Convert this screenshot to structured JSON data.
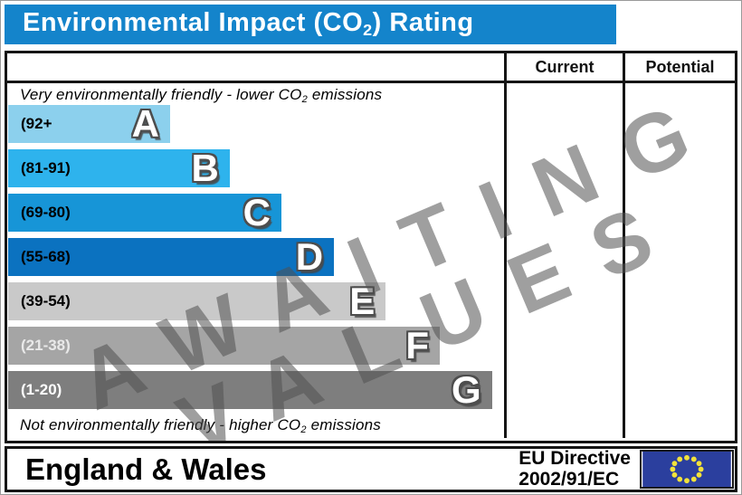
{
  "title": {
    "pre": "Environmental Impact (CO",
    "sub": "2",
    "post": ") Rating"
  },
  "colors": {
    "title_bar": "#1484cb",
    "border": "#151515",
    "watermark": "rgba(80,80,80,0.55)",
    "eu_flag_blue": "#2b3f9e",
    "eu_star_yellow": "#f2e23b"
  },
  "columns": {
    "current": "Current",
    "potential": "Potential"
  },
  "top_note": {
    "pre": "Very environmentally friendly - lower CO",
    "sub": "2",
    "post": " emissions"
  },
  "bottom_note": {
    "pre": "Not environmentally friendly - higher CO",
    "sub": "2",
    "post": " emissions"
  },
  "bands": [
    {
      "letter": "A",
      "range": "(92+",
      "color": "#8cd0ed",
      "label_color": "#000000",
      "width_pct": 32.6
    },
    {
      "letter": "B",
      "range": "(81-91)",
      "color": "#2eb3ed",
      "label_color": "#000000",
      "width_pct": 44.6
    },
    {
      "letter": "C",
      "range": "(69-80)",
      "color": "#1795d7",
      "label_color": "#000000",
      "width_pct": 55.0
    },
    {
      "letter": "D",
      "range": "(55-68)",
      "color": "#0b72c0",
      "label_color": "#000000",
      "width_pct": 65.6
    },
    {
      "letter": "E",
      "range": "(39-54)",
      "color": "#c9c9c9",
      "label_color": "#000000",
      "width_pct": 76.0
    },
    {
      "letter": "F",
      "range": "(21-38)",
      "color": "#a5a5a5",
      "label_color": "#e9e9e9",
      "width_pct": 86.9
    },
    {
      "letter": "G",
      "range": "(1-20)",
      "color": "#7e7e7e",
      "label_color": "#ffffff",
      "width_pct": 97.4
    }
  ],
  "watermark": {
    "line1": "AWAITING",
    "line2": "VALUES"
  },
  "footer": {
    "region": "England & Wales",
    "directive_line1": "EU Directive",
    "directive_line2": "2002/91/EC",
    "flag_icon": "eu-flag-icon"
  },
  "chart_data": {
    "type": "bar",
    "title": "Environmental Impact (CO2) Rating",
    "categories": [
      "A",
      "B",
      "C",
      "D",
      "E",
      "F",
      "G"
    ],
    "band_ranges": [
      "92+",
      "81-91",
      "69-80",
      "55-68",
      "39-54",
      "21-38",
      "1-20"
    ],
    "bar_lengths_pct_of_scale": [
      32.6,
      44.6,
      55.0,
      65.6,
      76.0,
      86.9,
      97.4
    ],
    "bar_colors": [
      "#8cd0ed",
      "#2eb3ed",
      "#1795d7",
      "#0b72c0",
      "#c9c9c9",
      "#a5a5a5",
      "#7e7e7e"
    ],
    "value_columns": [
      "Current",
      "Potential"
    ],
    "current_value": null,
    "potential_value": null,
    "watermark_annotation": "AWAITING VALUES",
    "top_annotation": "Very environmentally friendly - lower CO2 emissions",
    "bottom_annotation": "Not environmentally friendly - higher CO2 emissions",
    "footer_left": "England & Wales",
    "footer_right": "EU Directive 2002/91/EC",
    "legend_position": "none",
    "grid": false
  }
}
